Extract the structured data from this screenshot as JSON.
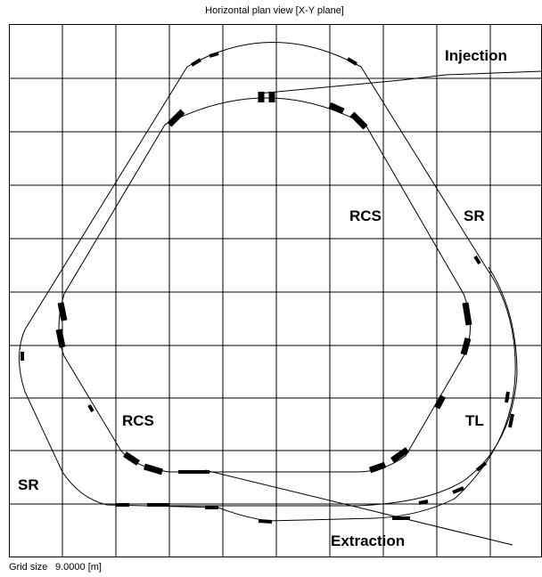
{
  "title": "Horizontal plan view [X-Y plane]",
  "labels": [
    "Injection",
    "RCS",
    "SR",
    "RCS",
    "TL",
    "SR",
    "Extraction"
  ],
  "footer": {
    "grid_label": "Grid size",
    "grid_value": "9.0000 [m]"
  }
}
